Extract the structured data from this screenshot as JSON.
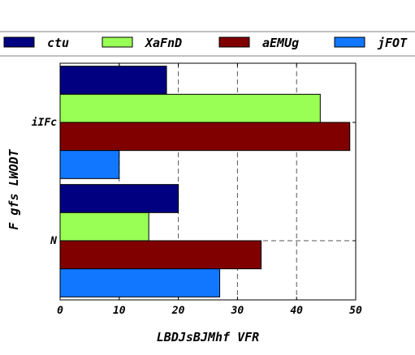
{
  "chart_data": {
    "type": "bar",
    "orientation": "horizontal",
    "title": "",
    "xlabel": "LBDJsBJMhf VFR",
    "ylabel": "F gfs LWODT",
    "categories": [
      "iIFc",
      "N"
    ],
    "xlim": [
      0,
      50
    ],
    "xticks": [
      0,
      10,
      20,
      30,
      40,
      50
    ],
    "grid": "dashed",
    "legend_position": "top",
    "series": [
      {
        "name": "ctu",
        "color": "#000080",
        "values": [
          18,
          20
        ]
      },
      {
        "name": "XaFnD",
        "color": "#99ff55",
        "values": [
          44,
          15
        ]
      },
      {
        "name": "aEMUg",
        "color": "#800000",
        "values": [
          49,
          34
        ]
      },
      {
        "name": "jFOT",
        "color": "#1177ff",
        "values": [
          10,
          27
        ]
      }
    ]
  }
}
